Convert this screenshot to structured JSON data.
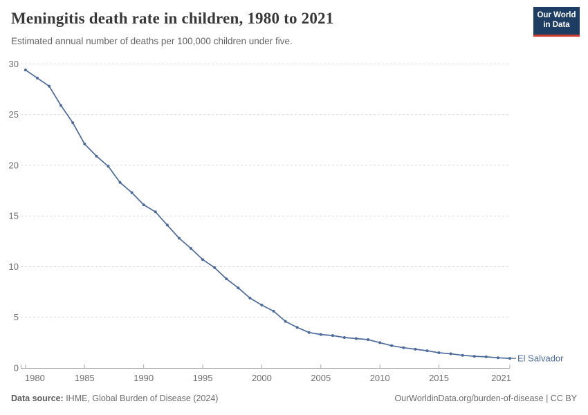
{
  "header": {
    "title": "Meningitis death rate in children, 1980 to 2021",
    "subtitle": "Estimated annual number of deaths per 100,000 children under five.",
    "logo": {
      "line1": "Our World",
      "line2": "in Data",
      "bg_color": "#1d3d63",
      "bar_color": "#cf3b32"
    }
  },
  "chart_data": {
    "type": "line",
    "title": "Meningitis death rate in children, 1980 to 2021",
    "subtitle": "Estimated annual number of deaths per 100,000 children under five.",
    "xlabel": "",
    "ylabel": "",
    "xlim": [
      1980,
      2021
    ],
    "ylim": [
      0,
      30
    ],
    "xticks": [
      1980,
      1985,
      1990,
      1995,
      2000,
      2005,
      2010,
      2015,
      2021
    ],
    "yticks": [
      0,
      5,
      10,
      15,
      20,
      25,
      30
    ],
    "grid": "horizontal-dashed",
    "legend_position": "end-of-line-label",
    "series": [
      {
        "name": "El Salvador",
        "color": "#4C6A9C",
        "x": [
          1980,
          1981,
          1982,
          1983,
          1984,
          1985,
          1986,
          1987,
          1988,
          1989,
          1990,
          1991,
          1992,
          1993,
          1994,
          1995,
          1996,
          1997,
          1998,
          1999,
          2000,
          2001,
          2002,
          2003,
          2004,
          2005,
          2006,
          2007,
          2008,
          2009,
          2010,
          2011,
          2012,
          2013,
          2014,
          2015,
          2016,
          2017,
          2018,
          2019,
          2020,
          2021
        ],
        "values": [
          29.4,
          28.6,
          27.8,
          25.9,
          24.2,
          22.1,
          20.9,
          19.9,
          18.3,
          17.3,
          16.1,
          15.4,
          14.1,
          12.8,
          11.8,
          10.7,
          9.9,
          8.8,
          7.9,
          6.9,
          6.2,
          5.6,
          4.6,
          4.0,
          3.5,
          3.3,
          3.2,
          3.0,
          2.9,
          2.8,
          2.5,
          2.2,
          2.0,
          1.85,
          1.7,
          1.5,
          1.4,
          1.25,
          1.15,
          1.1,
          1.0,
          0.95
        ]
      }
    ],
    "entity_label": "El Salvador"
  },
  "footer": {
    "datasource_label": "Data source:",
    "datasource_value": " IHME, Global Burden of Disease (2024)",
    "link_text": "OurWorldinData.org/burden-of-disease | CC BY"
  },
  "colors": {
    "line": "#4C6A9C",
    "axis": "#a6a6a6",
    "grid": "#dcdcdc",
    "tick_label": "#6e6e6e",
    "title": "#383838",
    "subtitle": "#636363"
  }
}
